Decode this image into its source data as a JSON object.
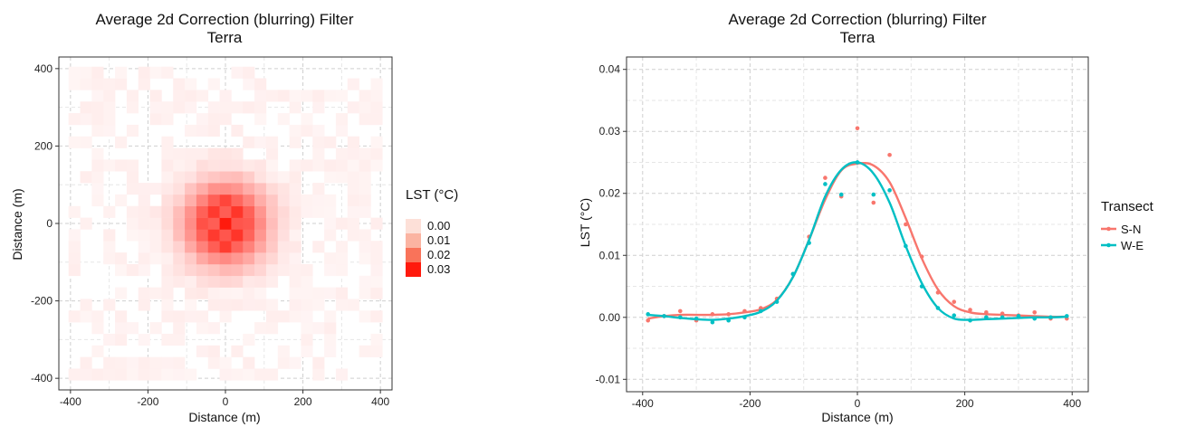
{
  "chart_data": [
    {
      "type": "heatmap",
      "title": "Average 2d Correction (blurring) Filter",
      "subtitle": "Terra",
      "xlabel": "Distance (m)",
      "ylabel": "Distance (m)",
      "xlim": [
        -430,
        430
      ],
      "ylim": [
        -430,
        430
      ],
      "x_ticks": [
        -400,
        -200,
        0,
        200,
        400
      ],
      "y_ticks": [
        400,
        200,
        0,
        -200,
        -400
      ],
      "grid": true,
      "cell_size_m": 30,
      "cell_extent_m": 390,
      "peak_value": 0.032,
      "spread_sigma_m": 68,
      "legend": {
        "title": "LST (°C)",
        "placement": "right",
        "entries": [
          {
            "label": "0.00",
            "color": "#fde0d8"
          },
          {
            "label": "0.01",
            "color": "#fbb4a2"
          },
          {
            "label": "0.02",
            "color": "#f9735a"
          },
          {
            "label": "0.03",
            "color": "#ff1a0d"
          }
        ]
      },
      "color_low": "#ffffff",
      "color_high": "#ff1a0d"
    },
    {
      "type": "line",
      "title": "Average 2d Correction (blurring) Filter",
      "subtitle": "Terra",
      "xlabel": "Distance (m)",
      "ylabel": "LST (°C)",
      "xlim": [
        -430,
        430
      ],
      "ylim": [
        -0.012,
        0.042
      ],
      "x_ticks": [
        -400,
        -200,
        0,
        200,
        400
      ],
      "y_ticks": [
        0.04,
        0.03,
        0.02,
        0.01,
        0.0,
        -0.01
      ],
      "y_tick_labels": [
        "0.04",
        "0.03",
        "0.02",
        "0.01",
        "0.00",
        "-0.01"
      ],
      "grid": true,
      "legend": {
        "title": "Transect",
        "placement": "right"
      },
      "series": [
        {
          "name": "S-N",
          "color": "#f8766d",
          "points": {
            "x": [
              -390,
              -360,
              -330,
              -300,
              -270,
              -240,
              -210,
              -180,
              -150,
              -120,
              -90,
              -60,
              -30,
              0,
              30,
              60,
              90,
              120,
              150,
              180,
              210,
              240,
              270,
              300,
              330,
              360,
              390
            ],
            "y": [
              -0.0005,
              0.0002,
              0.001,
              -0.0005,
              0.0005,
              0.0005,
              0.001,
              0.0015,
              0.003,
              0.007,
              0.013,
              0.0225,
              0.0195,
              0.0305,
              0.0185,
              0.0262,
              0.015,
              0.0098,
              0.004,
              0.0025,
              0.0012,
              0.0008,
              0.0006,
              0.0003,
              0.0008,
              -0.0002,
              -0.0002
            ]
          },
          "smooth": {
            "x": [
              -390,
              -360,
              -330,
              -300,
              -270,
              -240,
              -210,
              -180,
              -150,
              -120,
              -90,
              -60,
              -30,
              0,
              30,
              60,
              90,
              120,
              150,
              180,
              210,
              240,
              270,
              300,
              330,
              360,
              390
            ],
            "y": [
              -0.0002,
              0.0002,
              0.0004,
              0.0004,
              0.0004,
              0.0005,
              0.0008,
              0.0013,
              0.0028,
              0.0065,
              0.0125,
              0.019,
              0.0237,
              0.0248,
              0.0245,
              0.0218,
              0.016,
              0.0095,
              0.0045,
              0.0018,
              0.0008,
              0.0005,
              0.0004,
              0.0003,
              0.0002,
              0.0001,
              0.0001
            ]
          }
        },
        {
          "name": "W-E",
          "color": "#00bfc4",
          "points": {
            "x": [
              -390,
              -360,
              -330,
              -300,
              -270,
              -240,
              -210,
              -180,
              -150,
              -120,
              -90,
              -60,
              -30,
              0,
              30,
              60,
              90,
              120,
              150,
              180,
              210,
              240,
              270,
              300,
              330,
              360,
              390
            ],
            "y": [
              0.0005,
              0.0002,
              0.0,
              -0.0002,
              -0.0008,
              -0.0005,
              0.0,
              0.001,
              0.0025,
              0.007,
              0.012,
              0.0215,
              0.0198,
              0.025,
              0.0198,
              0.0205,
              0.0115,
              0.005,
              0.0015,
              0.0003,
              -0.0005,
              0.0,
              0.0,
              0.0002,
              -0.0002,
              0.0,
              0.0002
            ]
          },
          "smooth": {
            "x": [
              -390,
              -360,
              -330,
              -300,
              -270,
              -240,
              -210,
              -180,
              -150,
              -120,
              -90,
              -60,
              -30,
              0,
              30,
              60,
              90,
              120,
              150,
              180,
              210,
              240,
              270,
              300,
              330,
              360,
              390
            ],
            "y": [
              0.0004,
              0.0002,
              -0.0001,
              -0.0003,
              -0.0004,
              -0.0002,
              0.0002,
              0.0009,
              0.0027,
              0.0065,
              0.0125,
              0.0195,
              0.0238,
              0.025,
              0.0232,
              0.0185,
              0.0115,
              0.0055,
              0.0015,
              -0.0002,
              -0.0004,
              -0.0003,
              -0.0002,
              -0.0001,
              0.0,
              0.0,
              0.0001
            ]
          }
        }
      ]
    }
  ]
}
